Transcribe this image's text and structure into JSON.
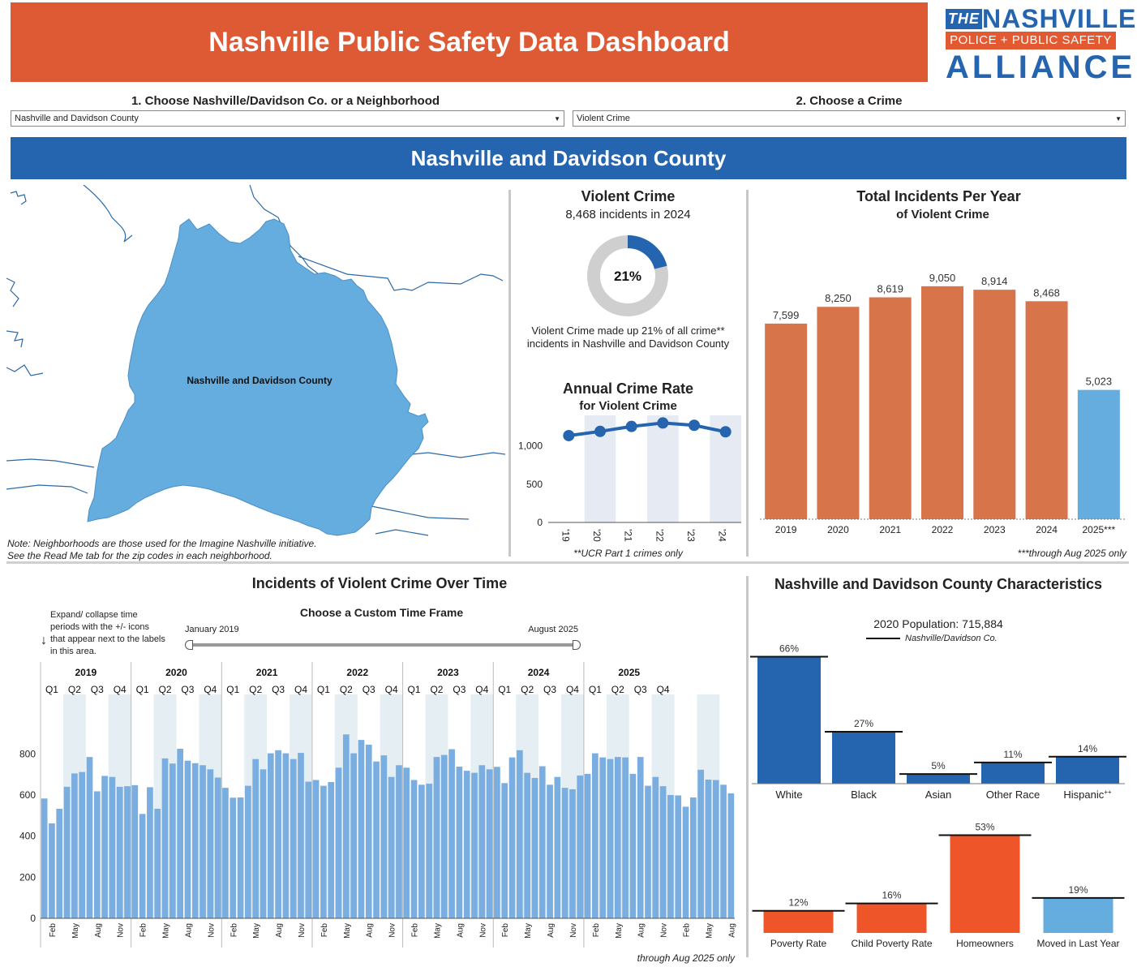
{
  "header": {
    "title": "Nashville Public Safety Data Dashboard"
  },
  "logo": {
    "the": "THE",
    "name": "NASHVILLE",
    "tagline": "POLICE + PUBLIC SAFETY",
    "alliance": "ALLIANCE"
  },
  "filters": {
    "area": {
      "label": "1. Choose Nashville/Davidson Co. or a Neighborhood",
      "value": "Nashville and Davidson County"
    },
    "crime": {
      "label": "2. Choose a Crime",
      "value": "Violent Crime"
    }
  },
  "banner": {
    "title": "Nashville and Davidson County"
  },
  "map": {
    "region_label": "Nashville and Davidson County",
    "note_line1": "Note: Neighborhoods are those used for the Imagine Nashville initiative.",
    "note_line2": "See the Read Me tab for the zip codes in each neighborhood.",
    "fill_color": "#65addf"
  },
  "summary": {
    "title": "Violent Crime",
    "incidents_text": "8,468 incidents in 2024",
    "percent_label": "21%",
    "percent": 21,
    "desc_line1": "Violent Crime made up 21% of all crime**",
    "desc_line2": "incidents in Nashville and Davidson County"
  },
  "rate_chart": {
    "title": "Annual Crime Rate",
    "subtitle": "for Violent Crime",
    "footnote": "**UCR Part 1 crimes only"
  },
  "yearly_chart": {
    "title": "Total Incidents Per Year",
    "subtitle": "of Violent Crime",
    "footnote": "***through Aug 2025 only"
  },
  "timeline": {
    "title": "Incidents of  Violent Crime Over Time",
    "custom_title": "Choose a Custom Time Frame",
    "range_start": "January 2019",
    "range_end": "August 2025",
    "hint": [
      "Expand/ collapse time",
      "periods with the +/- icons",
      "that appear next to the labels",
      "in this area."
    ],
    "footnote": "through Aug 2025 only"
  },
  "characteristics": {
    "title": "Nashville and Davidson County Characteristics",
    "population": "2020 Population: 715,884",
    "legend": "Nashville/Davidson Co."
  },
  "colors": {
    "orange": "#dd5a35",
    "bar_orange": "#d8744a",
    "blue": "#2565b0",
    "light_blue": "#65addf",
    "bar_light": "#7aaee0",
    "red": "#ee5528"
  },
  "chart_data": [
    {
      "type": "line",
      "name": "rate_chart",
      "title": "Annual Crime Rate",
      "subtitle": "for Violent Crime",
      "categories": [
        "'19",
        "'20",
        "'21",
        "'22",
        "'23",
        "'24"
      ],
      "values": [
        1135,
        1190,
        1255,
        1300,
        1270,
        1185
      ],
      "y_ticks": [
        "0",
        "500",
        "1,000"
      ],
      "ylim": [
        0,
        1400
      ]
    },
    {
      "type": "bar",
      "name": "yearly_chart",
      "title": "Total Incidents Per Year",
      "subtitle": "of Violent Crime",
      "categories": [
        "2019",
        "2020",
        "2021",
        "2022",
        "2023",
        "2024",
        "2025***"
      ],
      "values": [
        7599,
        8250,
        8619,
        9050,
        8914,
        8468,
        5023
      ],
      "value_labels": [
        "7,599",
        "8,250",
        "8,619",
        "9,050",
        "8,914",
        "8,468",
        "5,023"
      ],
      "ylim": [
        0,
        10400
      ]
    },
    {
      "type": "bar",
      "name": "monthly_chart",
      "title": "Incidents of  Violent Crime Over Time",
      "years": [
        "2019",
        "2020",
        "2021",
        "2022",
        "2023",
        "2024",
        "2025"
      ],
      "quarters": [
        "Q1",
        "Q2",
        "Q3",
        "Q4"
      ],
      "month_ticks": [
        "Feb",
        "May",
        "Aug",
        "Nov"
      ],
      "values": [
        583,
        462,
        533,
        640,
        705,
        712,
        785,
        618,
        693,
        688,
        640,
        643,
        648,
        508,
        638,
        533,
        778,
        753,
        825,
        767,
        755,
        745,
        725,
        685,
        635,
        587,
        588,
        645,
        775,
        725,
        803,
        818,
        803,
        775,
        805,
        665,
        673,
        645,
        663,
        733,
        895,
        803,
        868,
        845,
        763,
        793,
        688,
        745,
        733,
        673,
        650,
        655,
        785,
        795,
        823,
        738,
        718,
        708,
        745,
        725,
        737,
        658,
        783,
        818,
        708,
        683,
        740,
        650,
        688,
        635,
        628,
        695,
        703,
        803,
        783,
        775,
        785,
        783,
        703,
        785,
        645,
        688,
        643,
        600,
        598,
        543,
        588,
        723,
        675,
        673,
        650,
        608
      ],
      "y_ticks": [
        "0",
        "200",
        "400",
        "600",
        "800"
      ],
      "ylim": [
        0,
        1050
      ]
    },
    {
      "type": "bar",
      "name": "race_chart",
      "categories": [
        "White",
        "Black",
        "Asian",
        "Other Race",
        "Hispanic"
      ],
      "superscripts": [
        "",
        "",
        "",
        "",
        "++"
      ],
      "values": [
        66,
        27,
        5,
        11,
        14
      ],
      "value_labels": [
        "66%",
        "27%",
        "5%",
        "11%",
        "14%"
      ],
      "reference": [
        66,
        27,
        5,
        11,
        14
      ]
    },
    {
      "type": "bar",
      "name": "econ_chart",
      "categories": [
        "Poverty Rate",
        "Child Poverty Rate",
        "Homeowners",
        "Moved in Last Year"
      ],
      "values": [
        12,
        16,
        53,
        19
      ],
      "value_labels": [
        "12%",
        "16%",
        "53%",
        "19%"
      ],
      "reference": [
        12,
        16,
        53,
        19
      ]
    }
  ]
}
